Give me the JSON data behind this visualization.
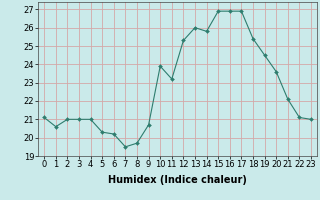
{
  "x": [
    0,
    1,
    2,
    3,
    4,
    5,
    6,
    7,
    8,
    9,
    10,
    11,
    12,
    13,
    14,
    15,
    16,
    17,
    18,
    19,
    20,
    21,
    22,
    23
  ],
  "y": [
    21.1,
    20.6,
    21.0,
    21.0,
    21.0,
    20.3,
    20.2,
    19.5,
    19.7,
    20.7,
    23.9,
    23.2,
    25.3,
    26.0,
    25.8,
    26.9,
    26.9,
    26.9,
    25.4,
    24.5,
    23.6,
    22.1,
    21.1,
    21.0
  ],
  "line_color": "#2e7d6e",
  "marker": "D",
  "marker_size": 2.0,
  "bg_color": "#caeaea",
  "grid_color": "#d4a8a8",
  "xlabel": "Humidex (Indice chaleur)",
  "xlim": [
    -0.5,
    23.5
  ],
  "ylim": [
    19,
    27.4
  ],
  "yticks": [
    19,
    20,
    21,
    22,
    23,
    24,
    25,
    26,
    27
  ],
  "xtick_labels": [
    "0",
    "1",
    "2",
    "3",
    "4",
    "5",
    "6",
    "7",
    "8",
    "9",
    "10",
    "11",
    "12",
    "13",
    "14",
    "15",
    "16",
    "17",
    "18",
    "19",
    "20",
    "21",
    "22",
    "23"
  ],
  "xlabel_fontsize": 7,
  "tick_fontsize": 6
}
